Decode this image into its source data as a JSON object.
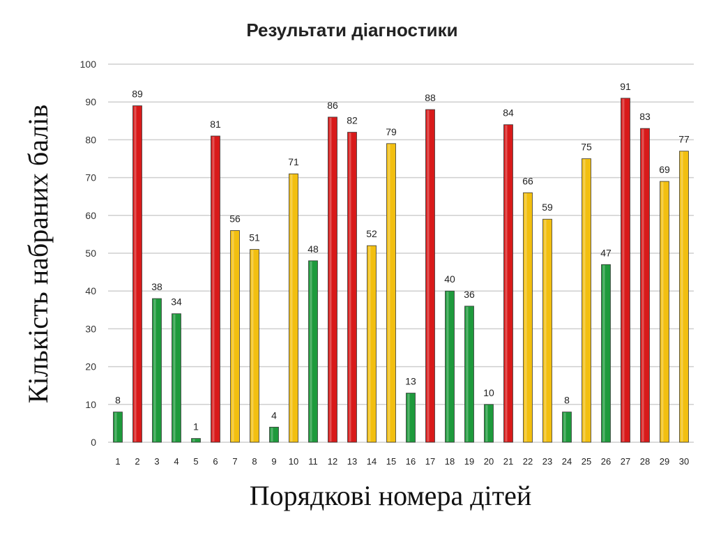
{
  "chart_data": {
    "type": "bar",
    "title": "Результати діагностики",
    "xlabel": "Порядкові номера дітей",
    "ylabel": "Кількість набраних балів",
    "ylim": [
      0,
      100
    ],
    "yticks": [
      0,
      10,
      20,
      30,
      40,
      50,
      60,
      70,
      80,
      90,
      100
    ],
    "grid": true,
    "categories": [
      "1",
      "2",
      "3",
      "4",
      "5",
      "6",
      "7",
      "8",
      "9",
      "10",
      "11",
      "12",
      "13",
      "14",
      "15",
      "16",
      "17",
      "18",
      "19",
      "20",
      "21",
      "22",
      "23",
      "24",
      "25",
      "26",
      "27",
      "28",
      "29",
      "30"
    ],
    "values": [
      8,
      89,
      38,
      34,
      1,
      81,
      56,
      51,
      4,
      71,
      48,
      86,
      82,
      52,
      79,
      13,
      88,
      40,
      36,
      10,
      84,
      66,
      59,
      8,
      75,
      47,
      91,
      83,
      69,
      77
    ],
    "colors": [
      "green",
      "red",
      "green",
      "green",
      "green",
      "red",
      "yellow",
      "yellow",
      "green",
      "yellow",
      "green",
      "red",
      "red",
      "yellow",
      "yellow",
      "green",
      "red",
      "green",
      "green",
      "green",
      "red",
      "yellow",
      "yellow",
      "green",
      "yellow",
      "green",
      "red",
      "red",
      "yellow",
      "yellow"
    ],
    "palette": {
      "green": "#1e9a3c",
      "red": "#d81a1a",
      "yellow": "#f2bf10"
    }
  }
}
